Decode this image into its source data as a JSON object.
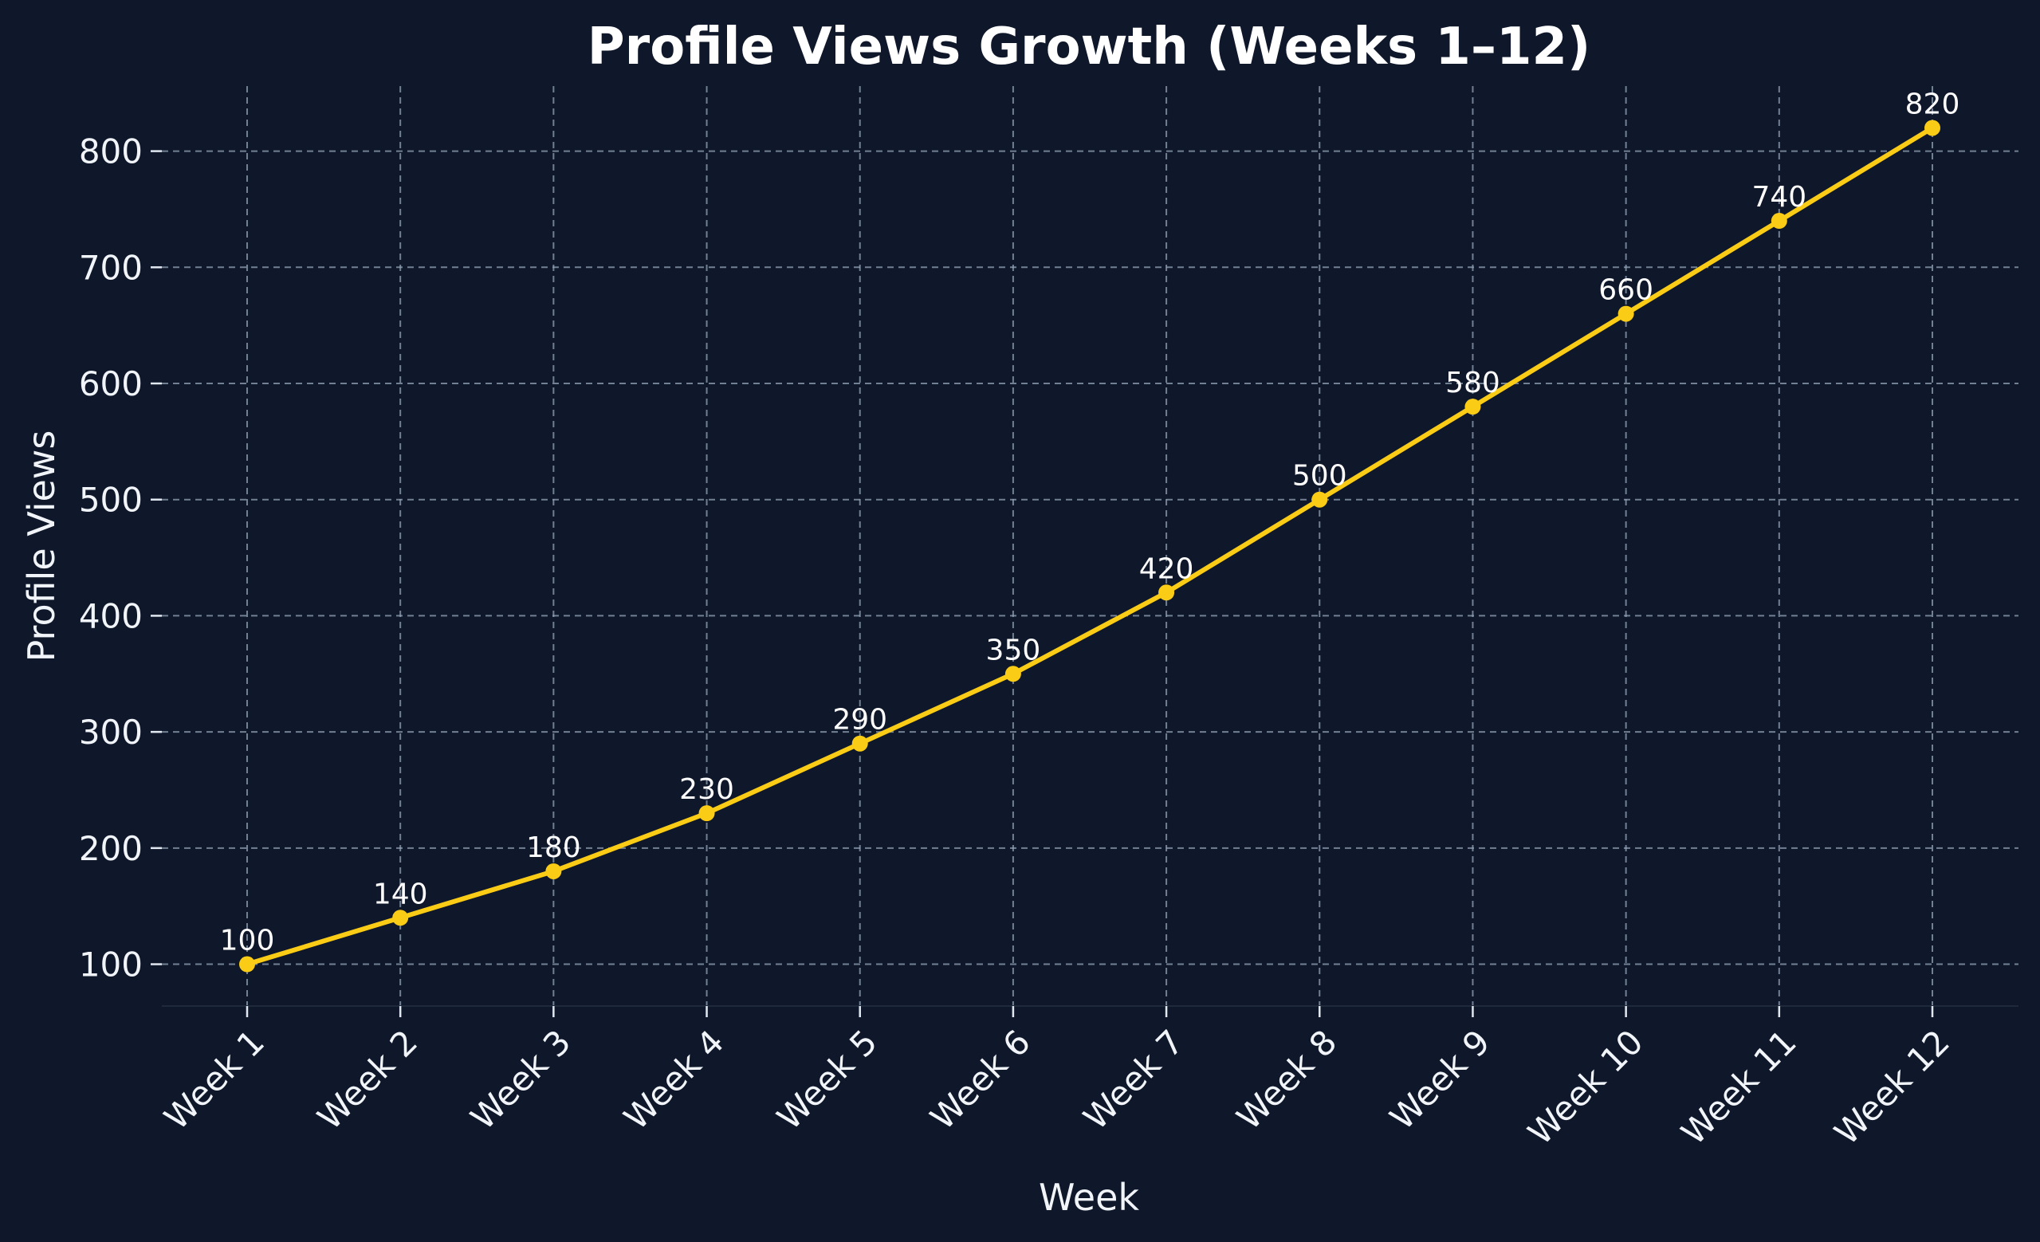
{
  "chart_data": {
    "type": "line",
    "title": "Profile Views Growth (Weeks 1–12)",
    "xlabel": "Week",
    "ylabel": "Profile Views",
    "categories": [
      "Week 1",
      "Week 2",
      "Week 3",
      "Week 4",
      "Week 5",
      "Week 6",
      "Week 7",
      "Week 8",
      "Week 9",
      "Week 10",
      "Week 11",
      "Week 12"
    ],
    "values": [
      100,
      140,
      180,
      230,
      290,
      350,
      420,
      500,
      580,
      660,
      740,
      820
    ],
    "data_labels": [
      "100",
      "140",
      "180",
      "230",
      "290",
      "350",
      "420",
      "500",
      "580",
      "660",
      "740",
      "820"
    ],
    "yticks": [
      100,
      200,
      300,
      400,
      500,
      600,
      700,
      800
    ],
    "ylim": [
      64,
      856
    ],
    "grid": true,
    "markers": true,
    "line_color": "#facc15",
    "background_color": "#0f172a",
    "text_color": "#f1f5f9",
    "grid_color": "#94a3b8"
  }
}
